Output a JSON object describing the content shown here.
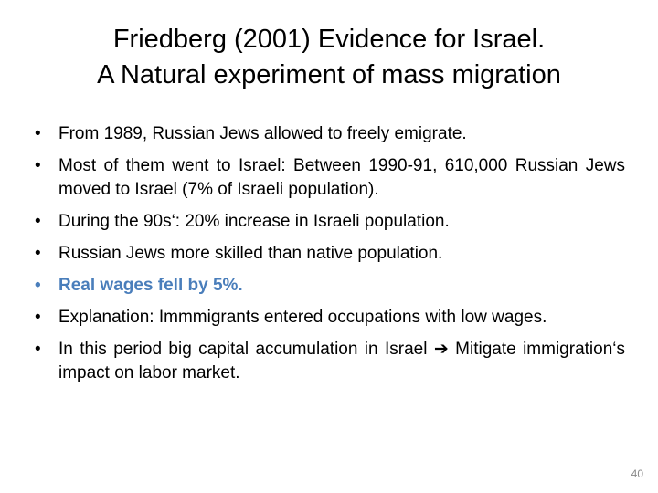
{
  "slide": {
    "title_line1": "Friedberg (2001) Evidence for Israel.",
    "title_line2": "A Natural experiment of mass migration",
    "page_number": "40"
  },
  "bullets": [
    {
      "marker": "•",
      "text": "From 1989, Russian Jews allowed to freely emigrate."
    },
    {
      "marker": "•",
      "text": "Most of them went to Israel: Between 1990-91, 610,000 Russian Jews moved to Israel (7% of Israeli population)."
    },
    {
      "marker": "•",
      "text": "During the 90s‘: 20% increase in Israeli population."
    },
    {
      "marker": "•",
      "text": "Russian Jews more skilled than native population."
    },
    {
      "marker": "•",
      "text": "Real wages fell by 5%.",
      "highlight": true
    },
    {
      "marker": "•",
      "text": "Explanation: Immmigrants entered occupations with low wages."
    },
    {
      "marker": "•",
      "text": "In this period big capital accumulation in Israel ➔ Mitigate immigration‘s impact on labor market."
    }
  ],
  "colors": {
    "highlight_blue": "#4a7ebb",
    "page_number_gray": "#8a8a8a",
    "text_black": "#000000"
  }
}
